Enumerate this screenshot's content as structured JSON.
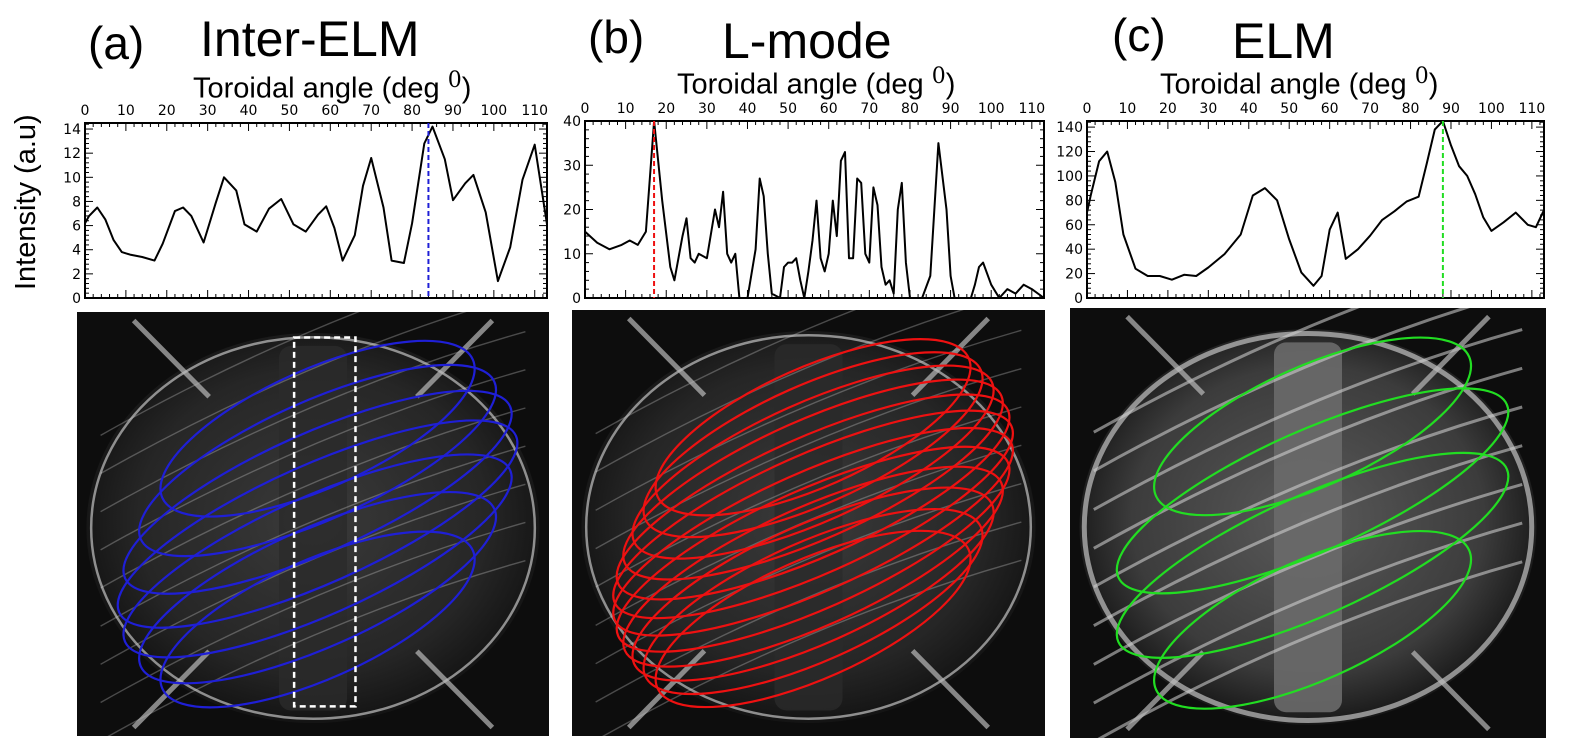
{
  "panels": [
    {
      "letter": "(a)",
      "title": "Inter-ELM",
      "xlabel": "Toroidal angle (deg ",
      "xlabel_sup": "0",
      "xlabel_close": ")",
      "color": "#1f1fd6",
      "marker_x": 84
    },
    {
      "letter": "(b)",
      "title": "L-mode",
      "xlabel": "Toroidal angle (deg ",
      "xlabel_sup": "0",
      "xlabel_close": ")",
      "color": "#ee1111",
      "marker_x": 17
    },
    {
      "letter": "(c)",
      "title": "ELM",
      "xlabel": "Toroidal angle (deg ",
      "xlabel_sup": "0",
      "xlabel_close": ")",
      "color": "#22dd22",
      "marker_x": 88
    }
  ],
  "ylabel": "Intensity (a.u)",
  "chart_data": [
    {
      "type": "line",
      "title": "Inter-ELM",
      "xlabel": "Toroidal angle (deg 0)",
      "ylabel": "Intensity (a.u)",
      "xlim": [
        0,
        113
      ],
      "ylim": [
        0,
        14.5
      ],
      "xticks": [
        0,
        10,
        20,
        30,
        40,
        50,
        60,
        70,
        80,
        90,
        100,
        110
      ],
      "yticks": [
        0,
        2,
        4,
        6,
        8,
        10,
        12,
        14
      ],
      "x": [
        0,
        1,
        3,
        5,
        7,
        9,
        11,
        14,
        17,
        19,
        22,
        24,
        26,
        29,
        32,
        34,
        37,
        39,
        42,
        45,
        48,
        51,
        54,
        57,
        59,
        61,
        63,
        66,
        68,
        70,
        73,
        75,
        78,
        80,
        83,
        85,
        88,
        90,
        93,
        95,
        98,
        101,
        104,
        107,
        110,
        113
      ],
      "y": [
        6.2,
        6.8,
        7.5,
        6.5,
        4.8,
        3.8,
        3.6,
        3.4,
        3.1,
        4.5,
        7.2,
        7.5,
        6.8,
        4.6,
        7.9,
        10,
        8.9,
        6.1,
        5.5,
        7.4,
        8.2,
        6.1,
        5.5,
        6.9,
        7.6,
        5.8,
        3.1,
        5.2,
        9.3,
        11.6,
        7.5,
        3.1,
        2.9,
        6.2,
        12.8,
        14.2,
        11.5,
        8.1,
        9.5,
        10.2,
        7.1,
        1.4,
        4.2,
        9.8,
        12.7,
        6.1
      ],
      "marker_x": 84,
      "marker_color": "#1f1fd6"
    },
    {
      "type": "line",
      "title": "L-mode",
      "xlabel": "Toroidal angle (deg 0)",
      "ylabel": "Intensity (a.u)",
      "xlim": [
        0,
        113
      ],
      "ylim": [
        0,
        40
      ],
      "xticks": [
        0,
        10,
        20,
        30,
        40,
        50,
        60,
        70,
        80,
        90,
        100,
        110
      ],
      "yticks": [
        0,
        10,
        20,
        30,
        40
      ],
      "x": [
        0,
        3,
        6,
        9,
        11,
        13,
        15,
        17,
        19,
        21,
        22,
        24,
        25,
        26,
        27,
        28,
        30,
        32,
        33,
        34,
        35,
        36,
        37,
        38,
        39,
        40,
        42,
        43,
        44,
        45,
        46,
        48,
        49,
        50,
        51,
        52,
        53,
        54,
        55,
        56,
        57,
        58,
        59,
        60,
        61,
        62,
        63,
        64,
        65,
        66,
        67,
        68,
        69,
        70,
        71,
        72,
        73,
        74,
        75,
        76,
        77,
        78,
        79,
        80,
        81,
        82,
        83,
        85,
        87,
        89,
        90,
        91,
        92,
        93,
        94,
        95,
        96,
        97,
        98,
        100,
        102,
        104,
        106,
        108,
        110,
        113
      ],
      "y": [
        15,
        12.5,
        11,
        12,
        13,
        12,
        15,
        40,
        22,
        7,
        4,
        14,
        18,
        9,
        8,
        10,
        9,
        20,
        16,
        24,
        10,
        8,
        10,
        0,
        0,
        0,
        11,
        27,
        23,
        10,
        1,
        0,
        7,
        8,
        8,
        9,
        4,
        0,
        6,
        13,
        22,
        9,
        6,
        10,
        22,
        14,
        31,
        33,
        9,
        9,
        27,
        26,
        10,
        8,
        25,
        21,
        7,
        3,
        4,
        1,
        20,
        26,
        8,
        0,
        0,
        0,
        0,
        5,
        35,
        20,
        5,
        0,
        0,
        0,
        0,
        0,
        3,
        7,
        8,
        3,
        0,
        2,
        1,
        3,
        2,
        0
      ],
      "marker_x": 17,
      "marker_color": "#ee1111"
    },
    {
      "type": "line",
      "title": "ELM",
      "xlabel": "Toroidal angle (deg 0)",
      "ylabel": "Intensity (a.u)",
      "xlim": [
        0,
        113
      ],
      "ylim": [
        0,
        145
      ],
      "xticks": [
        0,
        10,
        20,
        30,
        40,
        50,
        60,
        70,
        80,
        90,
        100,
        110
      ],
      "yticks": [
        0,
        20,
        40,
        60,
        80,
        100,
        120,
        140
      ],
      "x": [
        0,
        1,
        3,
        5,
        7,
        9,
        12,
        15,
        18,
        21,
        24,
        27,
        30,
        34,
        38,
        41,
        44,
        47,
        50,
        53,
        56,
        58,
        60,
        62,
        64,
        67,
        70,
        73,
        76,
        79,
        82,
        84,
        86,
        88,
        90,
        92,
        94,
        96,
        98,
        100,
        103,
        106,
        109,
        111,
        113
      ],
      "y": [
        70,
        85,
        112,
        120,
        95,
        52,
        24,
        18,
        18,
        15,
        19,
        18,
        25,
        36,
        52,
        84,
        90,
        80,
        48,
        21,
        10,
        18,
        56,
        70,
        32,
        40,
        51,
        64,
        71,
        79,
        83,
        110,
        138,
        145,
        125,
        108,
        100,
        85,
        66,
        55,
        62,
        70,
        60,
        58,
        72
      ],
      "marker_x": 88,
      "marker_color": "#22dd22"
    }
  ]
}
